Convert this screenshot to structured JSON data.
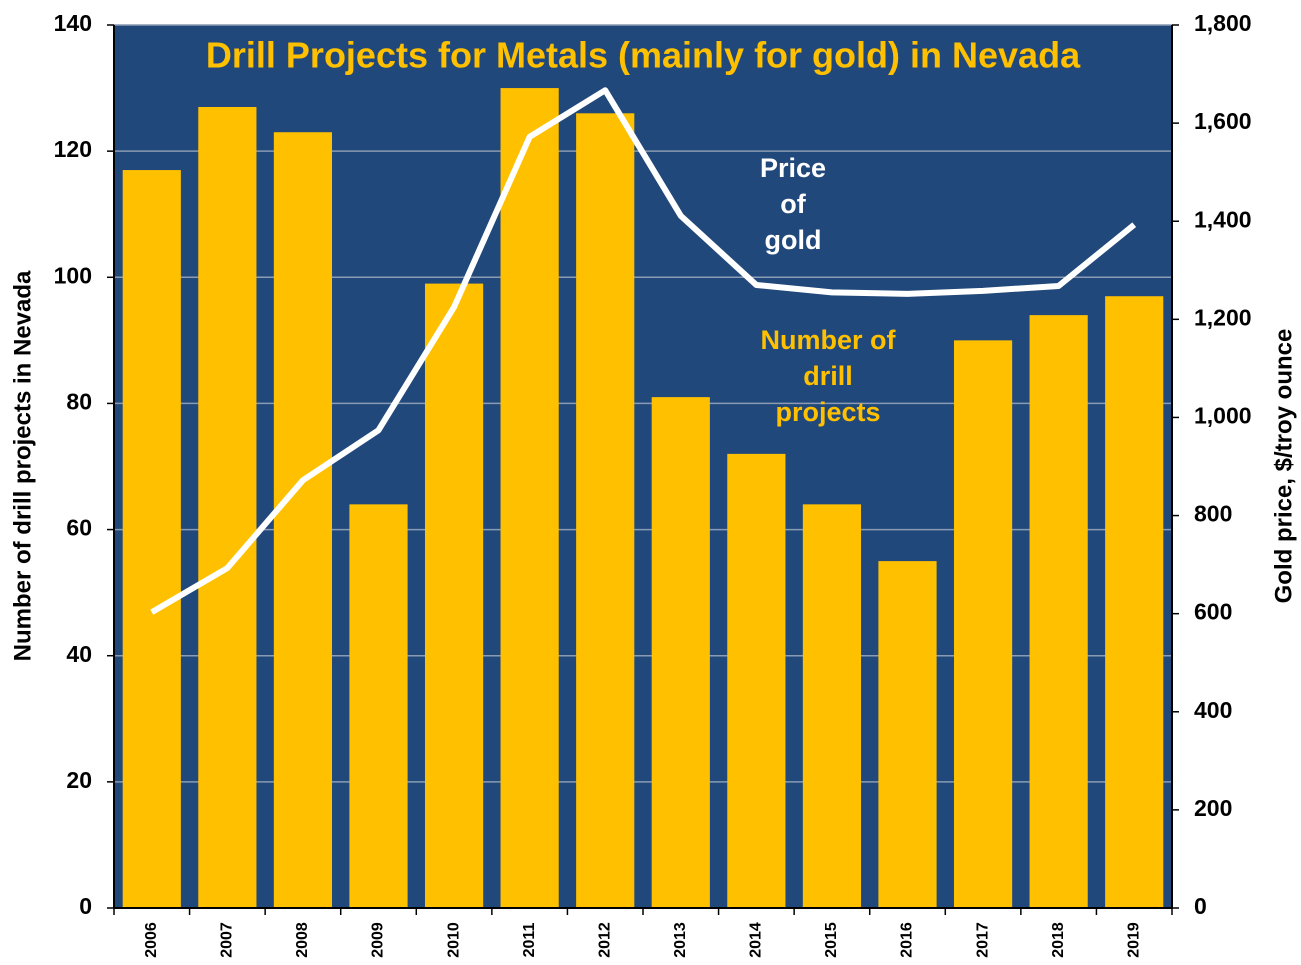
{
  "chart_data": {
    "type": "bar",
    "title": "Drill Projects for Metals (mainly for gold) in Nevada",
    "ylabel": "Number of drill projects in Nevada",
    "y2label": "Gold price, $/troy ounce",
    "categories": [
      "2006",
      "2007",
      "2008",
      "2009",
      "2010",
      "2011",
      "2012",
      "2013",
      "2014",
      "2015",
      "2016",
      "2017",
      "2018",
      "2019"
    ],
    "series": [
      {
        "type": "bar",
        "color": "#ffc000",
        "values": [
          117,
          127,
          123,
          64,
          99,
          130,
          126,
          81,
          72,
          64,
          55,
          90,
          94,
          97
        ]
      },
      {
        "type": "line",
        "axis": "y2",
        "color": "#ffffff",
        "values": [
          603,
          693,
          872,
          974,
          1225,
          1572,
          1667,
          1411,
          1270,
          1255,
          1252,
          1258,
          1268,
          1393
        ]
      }
    ],
    "annotations": [
      {
        "lines": [
          "Price",
          "of",
          "gold"
        ],
        "color": "#ffffff"
      },
      {
        "lines": [
          "Number  of",
          "drill",
          "projects"
        ],
        "color": "#ffc000"
      }
    ],
    "background": "#21487b",
    "grid": true,
    "ylim": [
      0,
      140
    ],
    "yticks": [
      0,
      20,
      40,
      60,
      80,
      100,
      120,
      140
    ],
    "y2lim": [
      0,
      1800
    ],
    "y2ticks": [
      0,
      200,
      400,
      600,
      800,
      {
        "value": 1000,
        "label": "1,000"
      },
      {
        "value": 1200,
        "label": "1,200"
      },
      {
        "value": 1400,
        "label": "1,400"
      },
      {
        "value": 1600,
        "label": "1,600"
      },
      {
        "value": 1800,
        "label": "1,800"
      }
    ]
  }
}
